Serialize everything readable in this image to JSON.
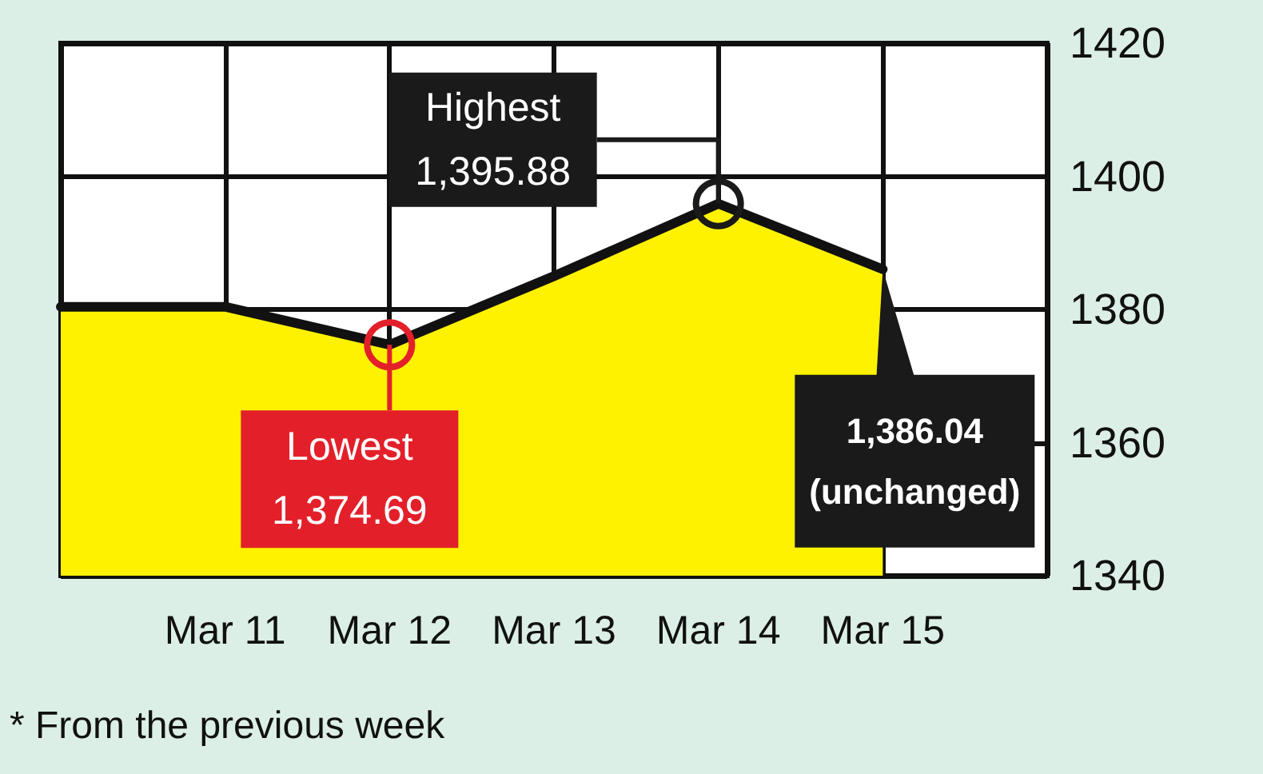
{
  "chart_data": {
    "type": "area",
    "categories": [
      null,
      "Mar 11",
      "Mar 12",
      "Mar 13",
      "Mar 14",
      "Mar 15",
      null
    ],
    "series": [
      {
        "color": "#fff200",
        "values": [
          1380.4,
          1380.4,
          1374.69,
          1385,
          1395.88,
          1386.04,
          null
        ]
      }
    ],
    "ylim": [
      1340,
      1420
    ],
    "yticks": [
      1340,
      1360,
      1380,
      1400,
      1420
    ],
    "grid": true,
    "marker": "none",
    "line_style": "solid",
    "annotations": [
      {
        "text": "Highest\n1,395.88",
        "x": "Mar 14",
        "y": 1395.88
      },
      {
        "text": "Lowest\n1,374.69",
        "x": "Mar 12",
        "y": 1374.69
      },
      {
        "text": "1,386.04\n(unchanged)",
        "x": "Mar 15",
        "y": 1386.04
      },
      "* From the previous week"
    ]
  }
}
